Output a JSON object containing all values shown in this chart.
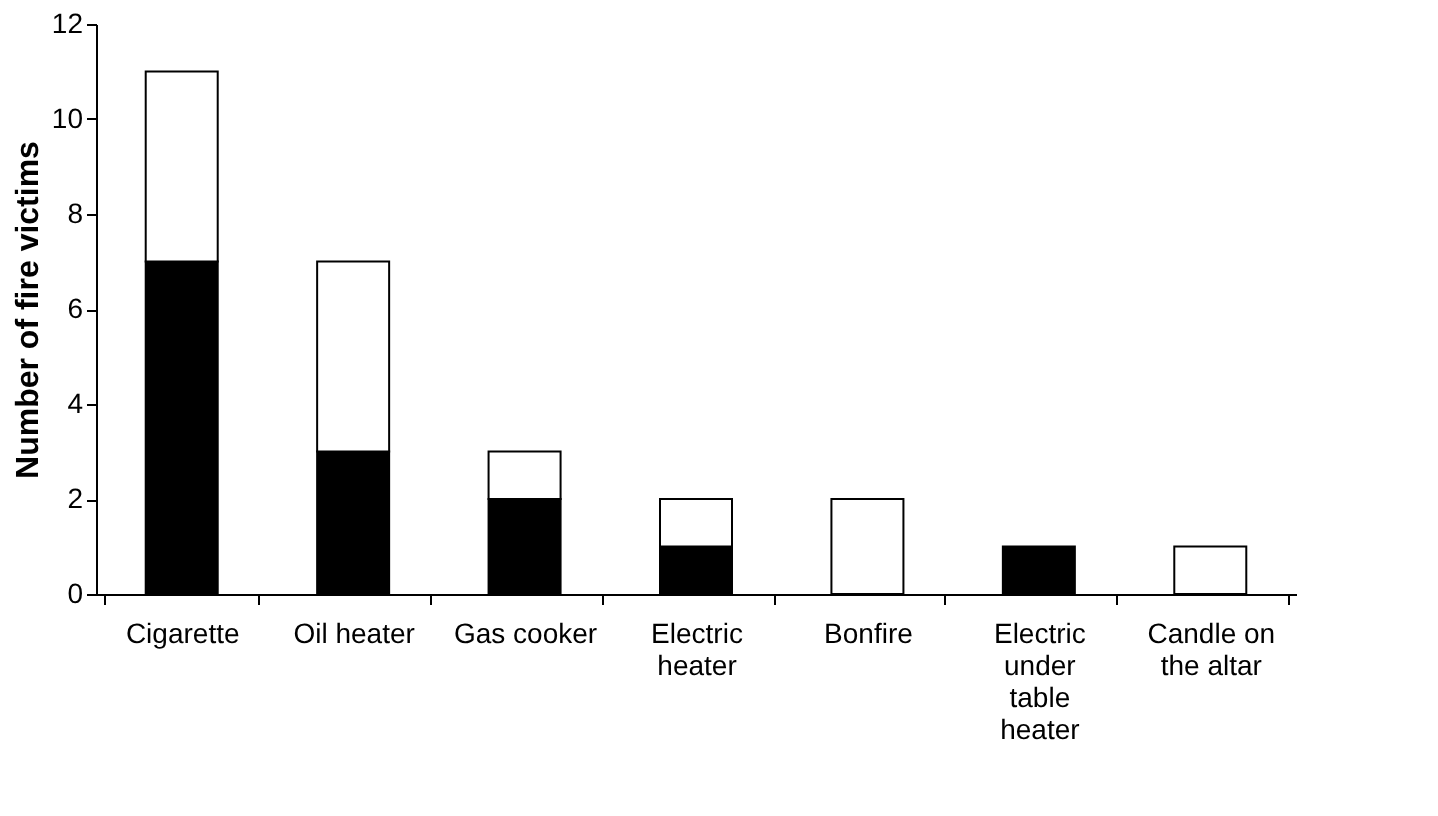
{
  "chart_data": {
    "type": "bar",
    "ylabel": "Number of fire victims",
    "stacked": true,
    "grid": false,
    "categories": [
      "Cigarette",
      "Oil heater",
      "Gas cooker",
      "Electric heater",
      "Bonfire",
      "Electric under table heater",
      "Candle on the altar"
    ],
    "ylim": [
      0,
      12
    ],
    "yticks": [
      0,
      2,
      4,
      6,
      8,
      10,
      12
    ],
    "series": [
      {
        "color": "#000000",
        "values": [
          7,
          3,
          2,
          1,
          0,
          1,
          0
        ]
      },
      {
        "color": "#ffffff",
        "values": [
          4,
          4,
          1,
          1,
          2,
          0,
          1
        ]
      }
    ]
  }
}
